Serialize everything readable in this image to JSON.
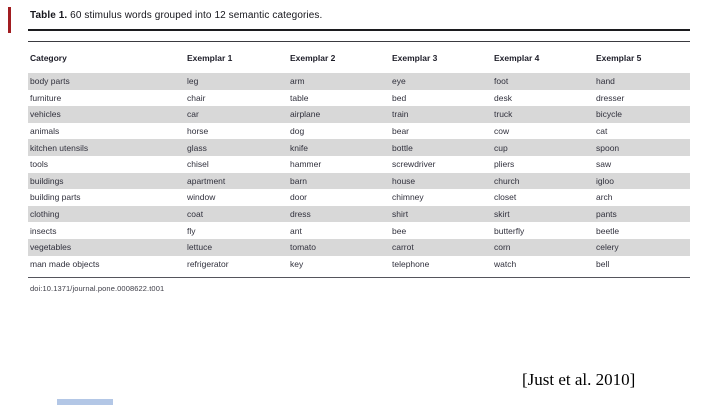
{
  "table": {
    "title_bold": "Table 1.",
    "title_rest": " 60 stimulus words grouped into 12 semantic categories.",
    "columns": [
      "Category",
      "Exemplar 1",
      "Exemplar 2",
      "Exemplar 3",
      "Exemplar 4",
      "Exemplar 5"
    ],
    "rows": [
      {
        "category": "body parts",
        "exemplars": [
          "leg",
          "arm",
          "eye",
          "foot",
          "hand"
        ],
        "shaded": true
      },
      {
        "category": "furniture",
        "exemplars": [
          "chair",
          "table",
          "bed",
          "desk",
          "dresser"
        ],
        "shaded": false
      },
      {
        "category": "vehicles",
        "exemplars": [
          "car",
          "airplane",
          "train",
          "truck",
          "bicycle"
        ],
        "shaded": true
      },
      {
        "category": "animals",
        "exemplars": [
          "horse",
          "dog",
          "bear",
          "cow",
          "cat"
        ],
        "shaded": false
      },
      {
        "category": "kitchen utensils",
        "exemplars": [
          "glass",
          "knife",
          "bottle",
          "cup",
          "spoon"
        ],
        "shaded": true
      },
      {
        "category": "tools",
        "exemplars": [
          "chisel",
          "hammer",
          "screwdriver",
          "pliers",
          "saw"
        ],
        "shaded": false
      },
      {
        "category": "buildings",
        "exemplars": [
          "apartment",
          "barn",
          "house",
          "church",
          "igloo"
        ],
        "shaded": true
      },
      {
        "category": "building parts",
        "exemplars": [
          "window",
          "door",
          "chimney",
          "closet",
          "arch"
        ],
        "shaded": false
      },
      {
        "category": "clothing",
        "exemplars": [
          "coat",
          "dress",
          "shirt",
          "skirt",
          "pants"
        ],
        "shaded": true
      },
      {
        "category": "insects",
        "exemplars": [
          "fly",
          "ant",
          "bee",
          "butterfly",
          "beetle"
        ],
        "shaded": false
      },
      {
        "category": "vegetables",
        "exemplars": [
          "lettuce",
          "tomato",
          "carrot",
          "corn",
          "celery"
        ],
        "shaded": true
      },
      {
        "category": "man made objects",
        "exemplars": [
          "refrigerator",
          "key",
          "telephone",
          "watch",
          "bell"
        ],
        "shaded": false
      }
    ],
    "footer_doi": "doi:10.1371/journal.pone.0008622.t001"
  },
  "citation": "[Just et al. 2010]",
  "colors": {
    "row_shade": "#d8d8d8",
    "rule_dark": "#1c1c1f",
    "text": "#30303c",
    "accent_red": "#a11d21",
    "bottom_bar_blue": "#b3c7e6"
  }
}
